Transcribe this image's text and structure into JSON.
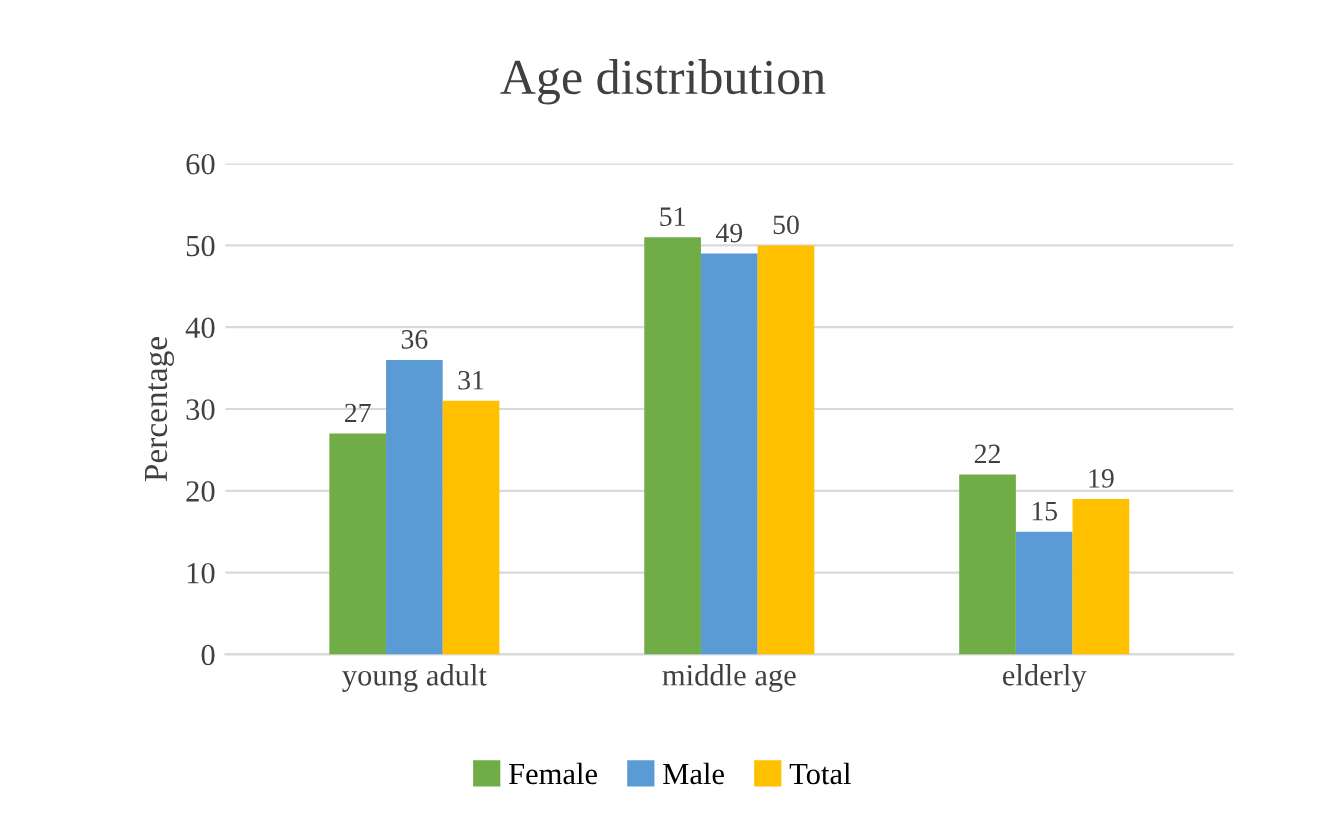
{
  "chart_data": {
    "type": "bar",
    "title": "Age distribution",
    "ylabel": "Percentage",
    "categories": [
      "young adult",
      "middle age",
      "elderly"
    ],
    "series": [
      {
        "name": "Female",
        "color": "#70ad47",
        "values": [
          27,
          51,
          22
        ]
      },
      {
        "name": "Male",
        "color": "#5b9bd5",
        "values": [
          36,
          49,
          15
        ]
      },
      {
        "name": "Total",
        "color": "#ffc000",
        "values": [
          31,
          50,
          19
        ]
      }
    ],
    "ylim": [
      0,
      60
    ],
    "yticks": [
      0,
      10,
      20,
      30,
      40,
      50,
      60
    ],
    "grid": "y",
    "legend": "bottom",
    "data_labels": true
  }
}
